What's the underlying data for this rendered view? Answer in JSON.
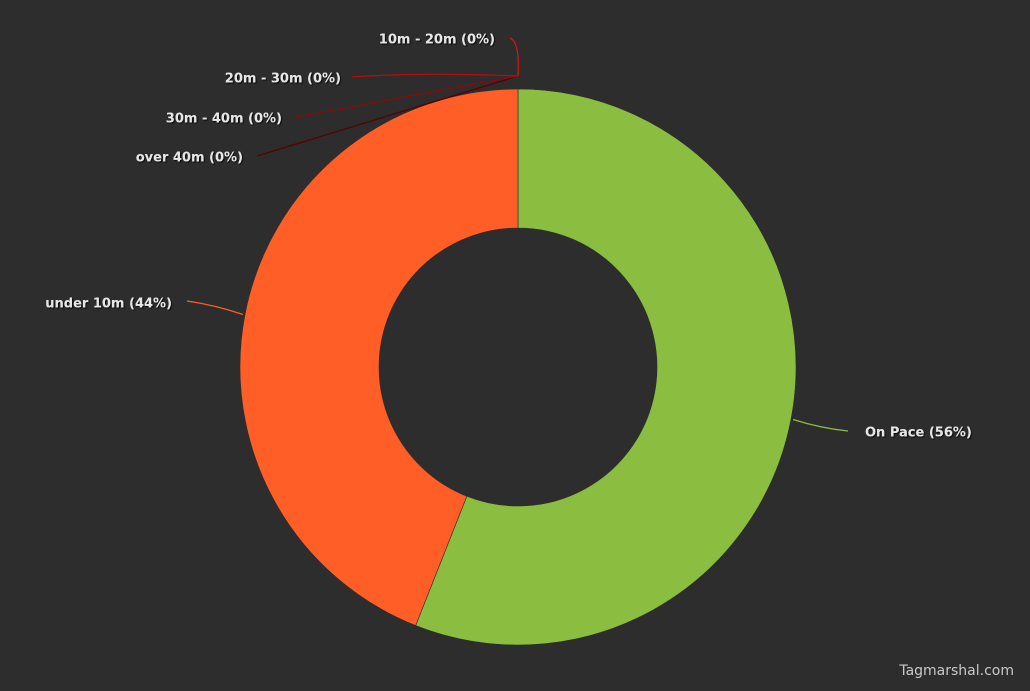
{
  "chart_data": {
    "type": "pie",
    "variant": "donut",
    "slices": [
      {
        "label": "On Pace (56%)",
        "value": 56,
        "color": "#8bbd40"
      },
      {
        "label": "under 10m (44%)",
        "value": 44,
        "color": "#ff5e26"
      },
      {
        "label": "over 40m (0%)",
        "value": 0,
        "color": "#5a0000"
      },
      {
        "label": "30m - 40m (0%)",
        "value": 0,
        "color": "#8a0a0a"
      },
      {
        "label": "20m - 30m (0%)",
        "value": 0,
        "color": "#b01010"
      },
      {
        "label": "10m - 20m (0%)",
        "value": 0,
        "color": "#cc1818"
      }
    ]
  },
  "watermark": "Tagmarshal.com",
  "colors": {
    "background": "#2d2d2d",
    "label_text": "#e6e6e6",
    "label_shadow": "#000000"
  }
}
